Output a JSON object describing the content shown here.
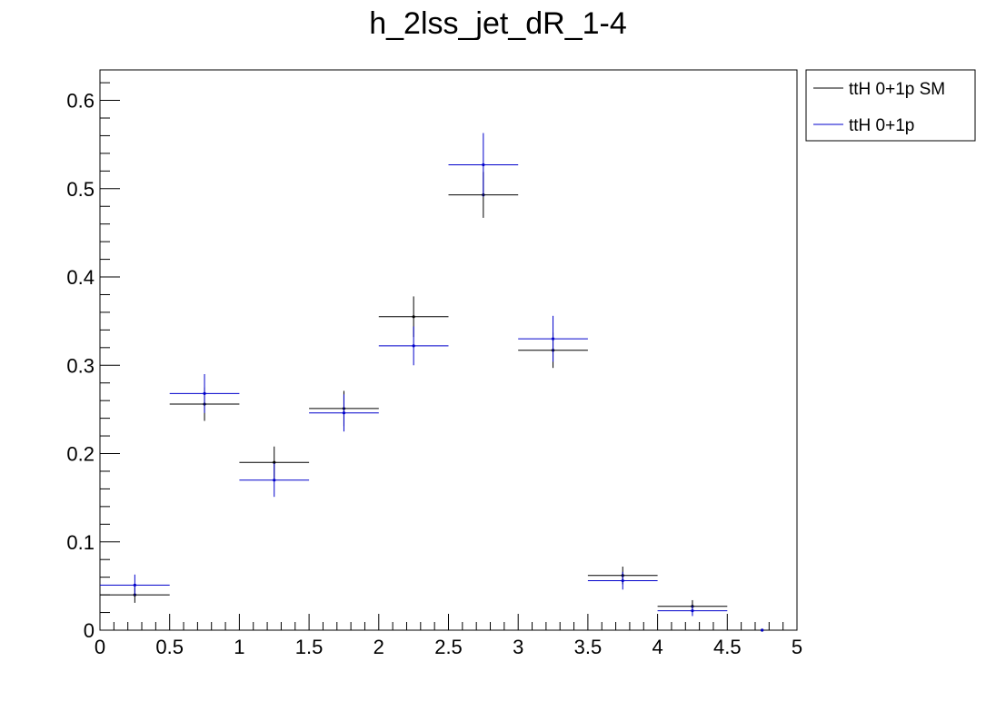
{
  "chart_data": {
    "type": "scatter",
    "title": "h_2lss_jet_dR_1-4",
    "xlabel": "",
    "ylabel": "",
    "xlim": [
      0,
      5
    ],
    "ylim": [
      0,
      0.6345
    ],
    "bin_width": 0.5,
    "x_ticks": [
      {
        "value": 0,
        "label": "0"
      },
      {
        "value": 0.5,
        "label": "0.5"
      },
      {
        "value": 1,
        "label": "1"
      },
      {
        "value": 1.5,
        "label": "1.5"
      },
      {
        "value": 2,
        "label": "2"
      },
      {
        "value": 2.5,
        "label": "2.5"
      },
      {
        "value": 3,
        "label": "3"
      },
      {
        "value": 3.5,
        "label": "3.5"
      },
      {
        "value": 4,
        "label": "4"
      },
      {
        "value": 4.5,
        "label": "4.5"
      },
      {
        "value": 5,
        "label": "5"
      }
    ],
    "y_ticks": [
      {
        "value": 0,
        "label": "0"
      },
      {
        "value": 0.1,
        "label": "0.1"
      },
      {
        "value": 0.2,
        "label": "0.2"
      },
      {
        "value": 0.3,
        "label": "0.3"
      },
      {
        "value": 0.4,
        "label": "0.4"
      },
      {
        "value": 0.5,
        "label": "0.5"
      },
      {
        "value": 0.6,
        "label": "0.6"
      }
    ],
    "legend_position": "outside-top-right",
    "grid": false,
    "series": [
      {
        "name": "ttH 0+1p SM",
        "color": "#000000",
        "x": [
          0.25,
          0.75,
          1.25,
          1.75,
          2.25,
          2.75,
          3.25,
          3.75,
          4.25,
          4.75
        ],
        "y": [
          0.04,
          0.256,
          0.19,
          0.251,
          0.355,
          0.493,
          0.317,
          0.062,
          0.027,
          0.0
        ],
        "yerr": [
          0.009,
          0.019,
          0.018,
          0.02,
          0.023,
          0.026,
          0.02,
          0.01,
          0.007,
          0.0
        ]
      },
      {
        "name": "ttH 0+1p",
        "color": "#0000cc",
        "x": [
          0.25,
          0.75,
          1.25,
          1.75,
          2.25,
          2.75,
          3.25,
          3.75,
          4.25,
          4.75
        ],
        "y": [
          0.051,
          0.268,
          0.17,
          0.246,
          0.322,
          0.527,
          0.33,
          0.056,
          0.022,
          0.0
        ],
        "yerr": [
          0.012,
          0.022,
          0.019,
          0.021,
          0.022,
          0.036,
          0.026,
          0.01,
          0.006,
          0.0
        ]
      }
    ]
  }
}
